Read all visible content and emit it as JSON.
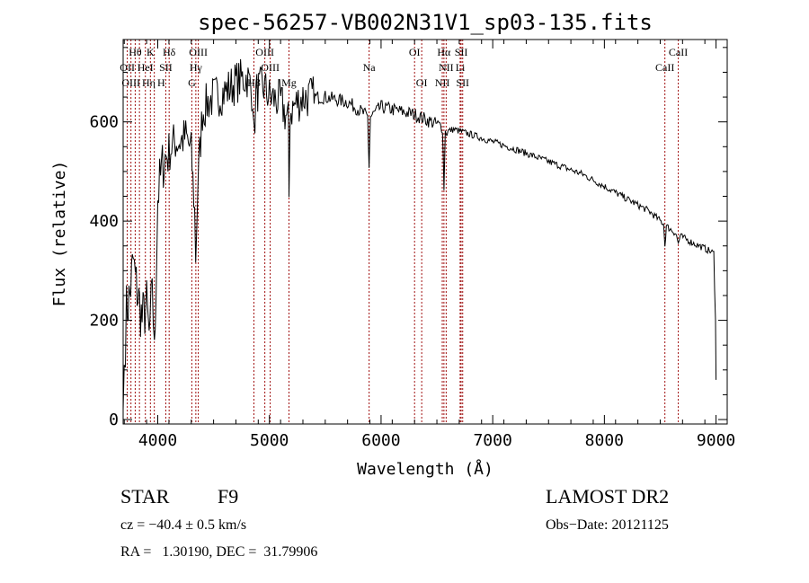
{
  "chart_data": {
    "type": "line",
    "title": "spec-56257-VB002N31V1_sp03-135.fits",
    "xlabel": "Wavelength (Å)",
    "ylabel": "Flux (relative)",
    "xlim": [
      3690,
      9100
    ],
    "ylim": [
      -9,
      766
    ],
    "xticks": [
      4000,
      5000,
      6000,
      7000,
      8000,
      9000
    ],
    "yticks": [
      0,
      200,
      400,
      600
    ],
    "grid": false,
    "series": [
      {
        "name": "flux",
        "x": [
          3690,
          3700,
          3720,
          3750,
          3780,
          3800,
          3830,
          3860,
          3900,
          3930,
          3950,
          3970,
          4000,
          4050,
          4100,
          4150,
          4200,
          4250,
          4300,
          4330,
          4340,
          4360,
          4400,
          4450,
          4500,
          4600,
          4700,
          4800,
          4850,
          4861,
          4880,
          4950,
          5000,
          5100,
          5170,
          5175,
          5185,
          5250,
          5300,
          5400,
          5500,
          5600,
          5700,
          5800,
          5880,
          5893,
          5905,
          6000,
          6100,
          6200,
          6300,
          6400,
          6500,
          6550,
          6563,
          6575,
          6650,
          6800,
          7000,
          7200,
          7500,
          7800,
          8000,
          8200,
          8400,
          8530,
          8542,
          8555,
          8640,
          8662,
          8680,
          8800,
          8900,
          8980,
          8995,
          9000
        ],
        "values": [
          20,
          110,
          220,
          250,
          320,
          280,
          240,
          200,
          230,
          150,
          300,
          120,
          450,
          520,
          540,
          560,
          560,
          570,
          540,
          420,
          330,
          480,
          620,
          640,
          650,
          660,
          680,
          690,
          660,
          560,
          660,
          670,
          650,
          640,
          600,
          450,
          620,
          640,
          650,
          650,
          650,
          645,
          640,
          625,
          610,
          510,
          610,
          630,
          625,
          620,
          615,
          605,
          595,
          590,
          470,
          580,
          585,
          575,
          560,
          545,
          520,
          495,
          470,
          445,
          420,
          395,
          350,
          390,
          375,
          355,
          370,
          355,
          345,
          335,
          200,
          80
        ]
      }
    ],
    "line_markers": [
      {
        "label": "Hθ",
        "wavelength": 3798,
        "row": 1
      },
      {
        "label": "K",
        "wavelength": 3934,
        "row": 1
      },
      {
        "label": "Hδ",
        "wavelength": 4102,
        "row": 1
      },
      {
        "label": "OIII",
        "wavelength": 4363,
        "row": 1
      },
      {
        "label": "OIII",
        "wavelength": 4959,
        "row": 1
      },
      {
        "label": "Na",
        "wavelength": 5893,
        "row": 2
      },
      {
        "label": "OI",
        "wavelength": 6300,
        "row": 1
      },
      {
        "label": "Hα",
        "wavelength": 6563,
        "row": 1
      },
      {
        "label": "SII",
        "wavelength": 6717,
        "row": 1
      },
      {
        "label": "CaII",
        "wavelength": 8662,
        "row": 1
      },
      {
        "label": "OII",
        "wavelength": 3727,
        "row": 2
      },
      {
        "label": "HeI",
        "wavelength": 3889,
        "row": 2
      },
      {
        "label": "SII",
        "wavelength": 4072,
        "row": 2
      },
      {
        "label": "Hγ",
        "wavelength": 4341,
        "row": 2
      },
      {
        "label": "OIII",
        "wavelength": 5007,
        "row": 2
      },
      {
        "label": "NII",
        "wavelength": 6583,
        "row": 2
      },
      {
        "label": "Li",
        "wavelength": 6708,
        "row": 2
      },
      {
        "label": "CaII",
        "wavelength": 8542,
        "row": 2
      },
      {
        "label": "OIII",
        "wavelength": 3760,
        "row": 3
      },
      {
        "label": "Hη",
        "wavelength": 3836,
        "row": 3
      },
      {
        "label": "H",
        "wavelength": 3969,
        "row": 3
      },
      {
        "label": "G",
        "wavelength": 4305,
        "row": 3
      },
      {
        "label": "Hβ",
        "wavelength": 4861,
        "row": 3
      },
      {
        "label": "Mg",
        "wavelength": 5175,
        "row": 3
      },
      {
        "label": "OI",
        "wavelength": 6364,
        "row": 3
      },
      {
        "label": "NII",
        "wavelength": 6548,
        "row": 3
      },
      {
        "label": "SII",
        "wavelength": 6731,
        "row": 3
      }
    ],
    "colors": {
      "spectrum": "#000000",
      "marker": "#a01010"
    }
  },
  "info": {
    "class": "STAR",
    "subclass": "F9",
    "cz": "cz = −40.4 ± 0.5 km/s",
    "coords": "RA =   1.30190, DEC =  31.79906",
    "survey": "LAMOST DR2",
    "obs_date": "Obs−Date: 20121125"
  }
}
